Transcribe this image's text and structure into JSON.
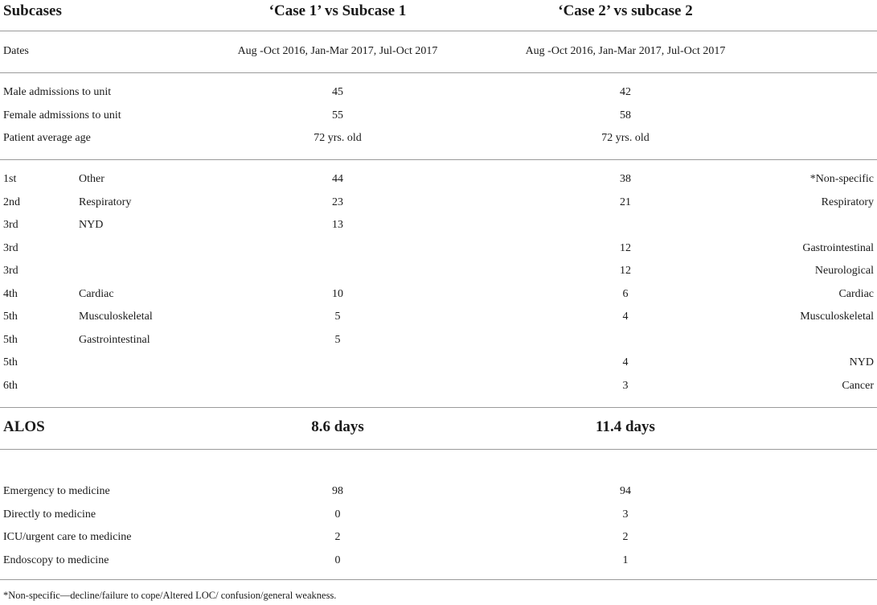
{
  "header": {
    "col_subcases": "Subcases",
    "col_case1": "‘Case 1’ vs Subcase 1",
    "col_case2": "‘Case 2’ vs subcase 2"
  },
  "dates": {
    "label": "Dates",
    "case1": "Aug -Oct 2016, Jan-Mar 2017, Jul-Oct 2017",
    "case2": "Aug -Oct 2016, Jan-Mar 2017, Jul-Oct 2017"
  },
  "demographics": [
    {
      "label": "Male admissions to unit",
      "case1": "45",
      "case2": "42"
    },
    {
      "label": "Female admissions to unit",
      "case1": "55",
      "case2": "58"
    },
    {
      "label": "Patient average age",
      "case1": "72 yrs. old",
      "case2": "72 yrs. old"
    }
  ],
  "diagnoses": [
    {
      "rank": "1st",
      "cat1": "Other",
      "case1": "44",
      "case2": "38",
      "cat2": "*Non-specific"
    },
    {
      "rank": "2nd",
      "cat1": "Respiratory",
      "case1": "23",
      "case2": "21",
      "cat2": "Respiratory"
    },
    {
      "rank": "3rd",
      "cat1": "NYD",
      "case1": "13",
      "case2": "",
      "cat2": ""
    },
    {
      "rank": "3rd",
      "cat1": "",
      "case1": "",
      "case2": "12",
      "cat2": "Gastrointestinal"
    },
    {
      "rank": "3rd",
      "cat1": "",
      "case1": "",
      "case2": "12",
      "cat2": "Neurological"
    },
    {
      "rank": "4th",
      "cat1": "Cardiac",
      "case1": "10",
      "case2": "6",
      "cat2": "Cardiac"
    },
    {
      "rank": "5th",
      "cat1": "Musculoskeletal",
      "case1": "5",
      "case2": "4",
      "cat2": "Musculoskeletal"
    },
    {
      "rank": "5th",
      "cat1": "Gastrointestinal",
      "case1": "5",
      "case2": "",
      "cat2": ""
    },
    {
      "rank": "5th",
      "cat1": "",
      "case1": "",
      "case2": "4",
      "cat2": "NYD"
    },
    {
      "rank": "6th",
      "cat1": "",
      "case1": "",
      "case2": "3",
      "cat2": "Cancer"
    }
  ],
  "alos": {
    "label": "ALOS",
    "case1": "8.6 days",
    "case2": "11.4 days"
  },
  "routes": [
    {
      "label": "Emergency to medicine",
      "case1": "98",
      "case2": "94"
    },
    {
      "label": "Directly to medicine",
      "case1": "0",
      "case2": "3"
    },
    {
      "label": "ICU/urgent care to medicine",
      "case1": "2",
      "case2": "2"
    },
    {
      "label": "Endoscopy to medicine",
      "case1": "0",
      "case2": "1"
    }
  ],
  "footnote": "*Non-specific—decline/failure to cope/Altered LOC/ confusion/general weakness."
}
